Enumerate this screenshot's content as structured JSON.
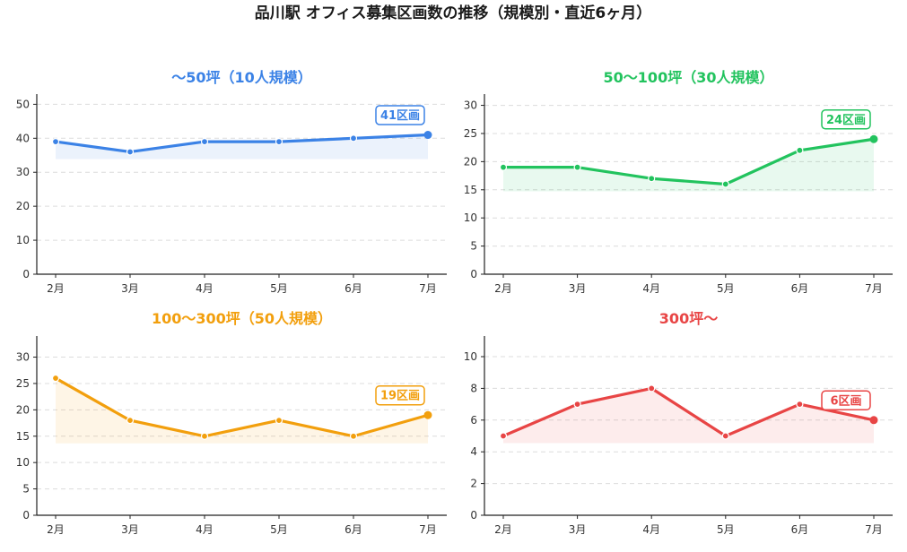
{
  "title": "品川駅 オフィス募集区画数の推移（規模別・直近6ヶ月）",
  "chart_data": [
    {
      "type": "line",
      "title": "〜50坪（10人規模）",
      "color": "#3b82e6",
      "x": [
        "2月",
        "3月",
        "4月",
        "5月",
        "6月",
        "7月"
      ],
      "values": [
        39,
        36,
        39,
        39,
        40,
        41
      ],
      "ylim": [
        0,
        53
      ],
      "yticks": [
        0,
        10,
        20,
        30,
        40,
        50
      ],
      "grid": true,
      "callout": "41区画"
    },
    {
      "type": "line",
      "title": "50〜100坪（30人規模）",
      "color": "#22c35e",
      "x": [
        "2月",
        "3月",
        "4月",
        "5月",
        "6月",
        "7月"
      ],
      "values": [
        19,
        19,
        17,
        16,
        22,
        24
      ],
      "ylim": [
        0,
        32
      ],
      "yticks": [
        0,
        5,
        10,
        15,
        20,
        25,
        30
      ],
      "grid": true,
      "callout": "24区画"
    },
    {
      "type": "line",
      "title": "100〜300坪（50人規模）",
      "color": "#f29f0d",
      "x": [
        "2月",
        "3月",
        "4月",
        "5月",
        "6月",
        "7月"
      ],
      "values": [
        26,
        18,
        15,
        18,
        15,
        19
      ],
      "ylim": [
        0,
        34
      ],
      "yticks": [
        0,
        5,
        10,
        15,
        20,
        25,
        30
      ],
      "grid": true,
      "callout": "19区画"
    },
    {
      "type": "line",
      "title": "300坪〜",
      "color": "#e84545",
      "x": [
        "2月",
        "3月",
        "4月",
        "5月",
        "6月",
        "7月"
      ],
      "values": [
        5,
        7,
        8,
        5,
        7,
        6
      ],
      "ylim": [
        0,
        11.3
      ],
      "yticks": [
        0,
        2,
        4,
        6,
        8,
        10
      ],
      "grid": true,
      "callout": "6区画"
    }
  ]
}
